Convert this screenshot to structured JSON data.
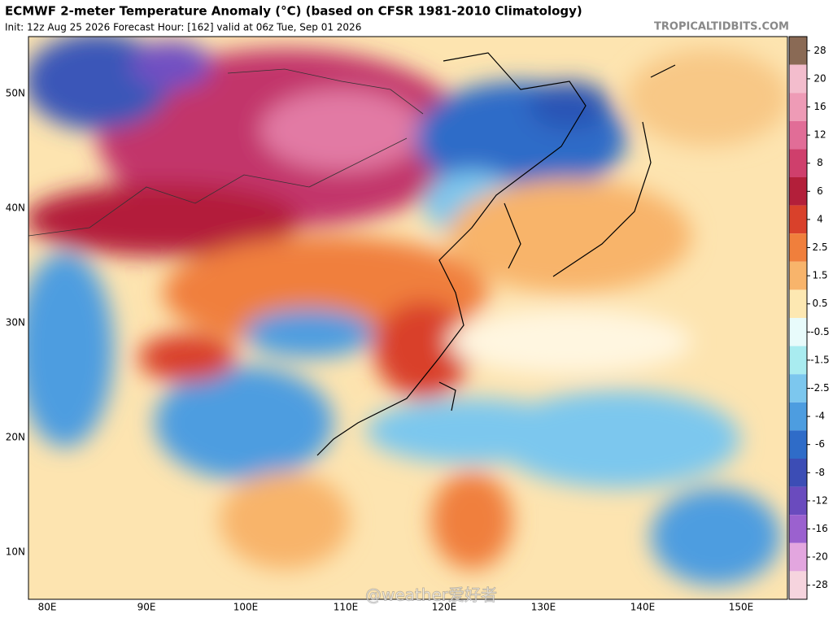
{
  "header": {
    "title": "ECMWF 2-meter Temperature Anomaly (°C) (based on CFSR 1981-2010 Climatology)",
    "subtitle": "Init: 12z Aug 25 2026   Forecast Hour: [162]   valid at 06z Tue, Sep 01 2026",
    "site": "TROPICALTIDBITS.COM"
  },
  "map": {
    "lat_labels": [
      "50N",
      "40N",
      "30N",
      "20N",
      "10N"
    ],
    "lon_labels": [
      "80E",
      "90E",
      "100E",
      "110E",
      "120E",
      "130E",
      "140E",
      "150E"
    ],
    "watermark": "@weather爱好者"
  },
  "colorbar": {
    "ticks": [
      28,
      20,
      16,
      12,
      8,
      6,
      4,
      2.5,
      1.5,
      0.5,
      -0.5,
      -1.5,
      -2.5,
      -4,
      -6,
      -8,
      -12,
      -16,
      -20,
      -28
    ],
    "colors": [
      "#8a6a55",
      "#f3bdcd",
      "#ee9bb6",
      "#e16d97",
      "#cf3f6c",
      "#b31f3a",
      "#d9412b",
      "#f07f3c",
      "#f8b46b",
      "#fde8b2",
      "#e8fbfb",
      "#a9ecf0",
      "#7cc7ee",
      "#4d9de0",
      "#2f6cc8",
      "#3c4db5",
      "#6a4bbe",
      "#9b61cf",
      "#e3a6df",
      "#f6d4de"
    ]
  }
}
